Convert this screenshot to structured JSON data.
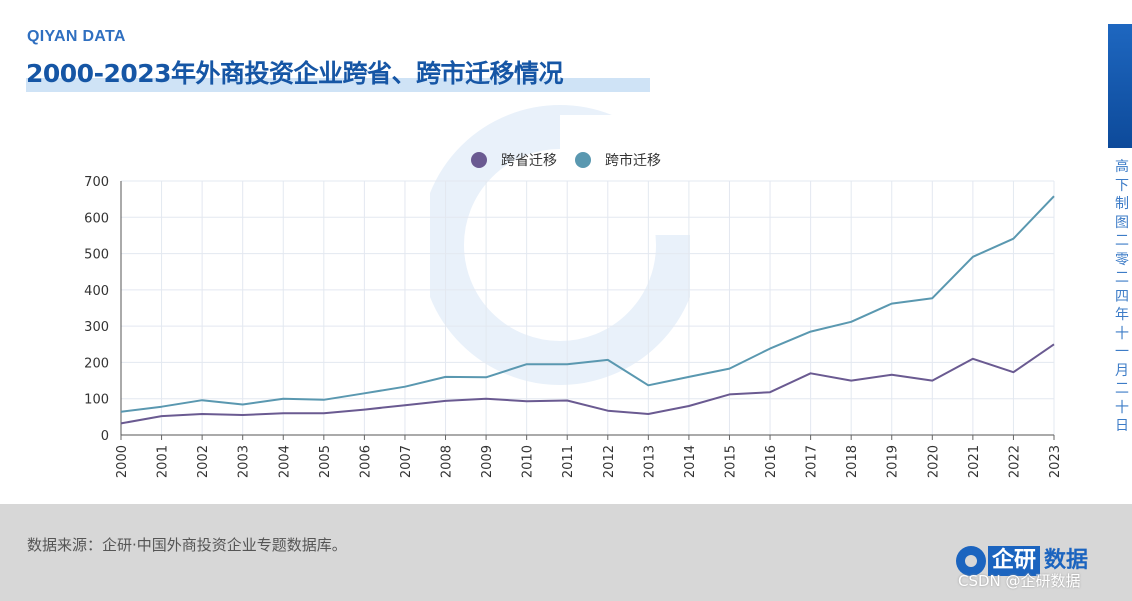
{
  "brand": "QIYAN DATA",
  "title": "2000-2023年外商投资企业跨省、跨市迁移情况",
  "side_text": "高下制图 二零二四年十一月二十日",
  "source": "数据来源：企研·中国外商投资企业专题数据库。",
  "logo": {
    "part1": "企研",
    "part2": "数据"
  },
  "watermark": "CSDN @企研数据",
  "chart_data": {
    "type": "line",
    "title": "2000-2023年外商投资企业跨省、跨市迁移情况",
    "xlabel": "",
    "ylabel": "",
    "ylim": [
      0,
      700
    ],
    "yticks": [
      0,
      100,
      200,
      300,
      400,
      500,
      600,
      700
    ],
    "x": [
      "2000",
      "2001",
      "2002",
      "2003",
      "2004",
      "2005",
      "2006",
      "2007",
      "2008",
      "2009",
      "2010",
      "2011",
      "2012",
      "2013",
      "2014",
      "2015",
      "2016",
      "2017",
      "2018",
      "2019",
      "2020",
      "2021",
      "2022",
      "2023"
    ],
    "series": [
      {
        "name": "跨省迁移",
        "color": "#6a5a91",
        "values": [
          32,
          52,
          58,
          55,
          60,
          60,
          70,
          82,
          94,
          100,
          93,
          95,
          67,
          58,
          80,
          112,
          118,
          170,
          150,
          166,
          150,
          210,
          173,
          250
        ]
      },
      {
        "name": "跨市迁移",
        "color": "#5a98b0",
        "values": [
          64,
          78,
          96,
          84,
          100,
          97,
          115,
          133,
          160,
          159,
          195,
          195,
          207,
          137,
          160,
          183,
          238,
          285,
          312,
          362,
          377,
          491,
          541,
          658
        ]
      }
    ],
    "legend_position": "top-center",
    "grid": true
  }
}
